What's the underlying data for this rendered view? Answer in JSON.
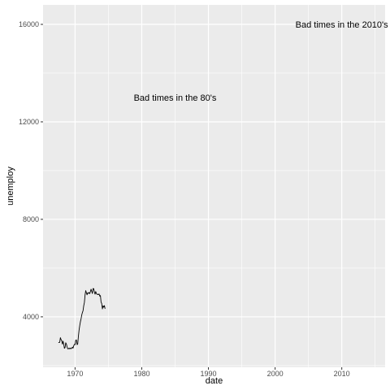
{
  "chart_data": {
    "type": "line",
    "title": "",
    "xlabel": "date",
    "ylabel": "unemploy",
    "x_ticks": [
      1970,
      1980,
      1990,
      2000,
      2010
    ],
    "y_ticks": [
      4000,
      8000,
      12000,
      16000
    ],
    "xlim": [
      1965.2,
      2016.5
    ],
    "ylim": [
      1930,
      16800
    ],
    "grid": true,
    "legend": "none",
    "colors": {
      "panel": "#EBEBEB",
      "grid": "#FFFFFF",
      "line": "#000000",
      "tick_label": "#4D4D4D",
      "tick_mark": "#333333"
    },
    "series": [
      {
        "x": [
          1967.5,
          1967.6,
          1967.7,
          1967.8,
          1967.9,
          1968.0,
          1968.1,
          1968.2,
          1968.3,
          1968.4,
          1968.5,
          1968.6,
          1968.7,
          1968.8,
          1968.9,
          1969.0,
          1969.1,
          1969.2,
          1969.3,
          1969.4,
          1969.5,
          1969.6,
          1969.7,
          1969.8,
          1969.9,
          1970.0,
          1970.1,
          1970.2,
          1970.3,
          1970.4,
          1970.5,
          1970.6,
          1970.7,
          1970.8,
          1970.9,
          1971.0,
          1971.1,
          1971.2,
          1971.3,
          1971.4,
          1971.5,
          1971.6,
          1971.7,
          1971.8,
          1971.9,
          1972.0,
          1972.1,
          1972.2,
          1972.3,
          1972.4,
          1972.5,
          1972.6,
          1972.7,
          1972.8,
          1972.9,
          1973.0,
          1973.1,
          1973.2,
          1973.3,
          1973.4,
          1973.5,
          1973.6,
          1973.7,
          1973.8,
          1973.9,
          1974.0,
          1974.1,
          1974.2,
          1974.3,
          1974.4,
          1974.5
        ],
        "values": [
          2944,
          2945,
          2958,
          3143,
          3066,
          3018,
          2878,
          3001,
          2877,
          2709,
          2740,
          2938,
          2883,
          2768,
          2686,
          2689,
          2715,
          2685,
          2718,
          2692,
          2712,
          2758,
          2713,
          2816,
          2868,
          2856,
          3040,
          3049,
          2856,
          2884,
          3201,
          3453,
          3635,
          3797,
          3919,
          4071,
          4175,
          4256,
          4456,
          4591,
          4898,
          5076,
          4986,
          4903,
          4987,
          4959,
          4996,
          4949,
          5035,
          5134,
          5042,
          4954,
          5161,
          5154,
          5019,
          4928,
          5038,
          4959,
          4922,
          4923,
          4913,
          4939,
          4849,
          4875,
          4602,
          4543,
          4326,
          4452,
          4394,
          4459,
          4329
        ]
      }
    ],
    "annotations": [
      {
        "label": "Bad times in the 80's",
        "x": 1985,
        "y": 13000
      },
      {
        "label": "Bad times in the 2010's",
        "x": 2010,
        "y": 16000
      }
    ]
  }
}
